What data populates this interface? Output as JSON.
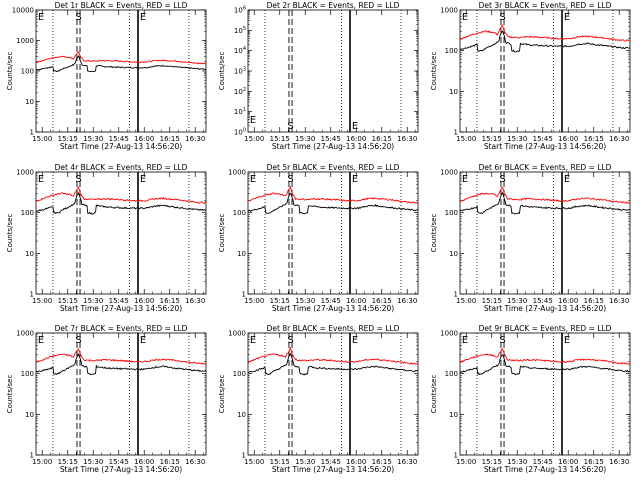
{
  "figure": {
    "x_label": "Start Time (27-Aug-13 14:56:20)",
    "y_label": "Counts/sec",
    "x_ticks": [
      "15:00",
      "15:15",
      "15:30",
      "15:45",
      "16:00",
      "16:15",
      "16:30"
    ],
    "colors": {
      "events": "#000000",
      "lld": "#ff0000"
    }
  },
  "chart_data": [
    {
      "type": "line",
      "title": "Det 1r BLACK = Events, RED = LLD",
      "yscale": "log",
      "ylim": [
        1,
        10000
      ],
      "y_ticks": [
        "1",
        "10",
        "100",
        "1000",
        "10000"
      ],
      "xlim_min": [
        0,
        100
      ],
      "markers": [
        "E",
        "S",
        "E"
      ],
      "series": [
        {
          "name": "Events",
          "profile": "events"
        },
        {
          "name": "LLD",
          "profile": "lld"
        }
      ]
    },
    {
      "type": "line",
      "title": "Det 2r BLACK = Events, RED = LLD",
      "yscale": "log",
      "ylim": [
        1,
        1000000
      ],
      "y_ticks": [
        "10^0",
        "10^1",
        "10^2",
        "10^3",
        "10^4",
        "10^5",
        "10^6"
      ],
      "xlim_min": [
        0,
        100
      ],
      "markers": [
        "E",
        "S",
        "E"
      ],
      "series": []
    },
    {
      "type": "line",
      "title": "Det 3r BLACK = Events, RED = LLD",
      "yscale": "log",
      "ylim": [
        1,
        1000
      ],
      "y_ticks": [
        "1",
        "10",
        "100",
        "1000"
      ],
      "xlim_min": [
        0,
        100
      ],
      "markers": [
        "E",
        "S",
        "E"
      ],
      "series": [
        {
          "name": "Events",
          "profile": "events"
        },
        {
          "name": "LLD",
          "profile": "lld"
        }
      ]
    },
    {
      "type": "line",
      "title": "Det 4r BLACK = Events, RED = LLD",
      "yscale": "log",
      "ylim": [
        1,
        1000
      ],
      "y_ticks": [
        "1",
        "10",
        "100",
        "1000"
      ],
      "xlim_min": [
        0,
        100
      ],
      "markers": [
        "E",
        "S",
        "E"
      ],
      "series": [
        {
          "name": "Events",
          "profile": "events"
        },
        {
          "name": "LLD",
          "profile": "lld"
        }
      ]
    },
    {
      "type": "line",
      "title": "Det 5r BLACK = Events, RED = LLD",
      "yscale": "log",
      "ylim": [
        1,
        1000
      ],
      "y_ticks": [
        "1",
        "10",
        "100",
        "1000"
      ],
      "xlim_min": [
        0,
        100
      ],
      "markers": [
        "E",
        "S",
        "E"
      ],
      "series": [
        {
          "name": "Events",
          "profile": "events"
        },
        {
          "name": "LLD",
          "profile": "lld"
        }
      ]
    },
    {
      "type": "line",
      "title": "Det 6r BLACK = Events, RED = LLD",
      "yscale": "log",
      "ylim": [
        1,
        1000
      ],
      "y_ticks": [
        "1",
        "10",
        "100",
        "1000"
      ],
      "xlim_min": [
        0,
        100
      ],
      "markers": [
        "E",
        "S",
        "E"
      ],
      "series": [
        {
          "name": "Events",
          "profile": "events"
        },
        {
          "name": "LLD",
          "profile": "lld"
        }
      ]
    },
    {
      "type": "line",
      "title": "Det 7r BLACK = Events, RED = LLD",
      "yscale": "log",
      "ylim": [
        1,
        1000
      ],
      "y_ticks": [
        "1",
        "10",
        "100",
        "1000"
      ],
      "xlim_min": [
        0,
        100
      ],
      "markers": [
        "E",
        "S",
        "E"
      ],
      "series": [
        {
          "name": "Events",
          "profile": "events"
        },
        {
          "name": "LLD",
          "profile": "lld"
        }
      ]
    },
    {
      "type": "line",
      "title": "Det 8r BLACK = Events, RED = LLD",
      "yscale": "log",
      "ylim": [
        1,
        1000
      ],
      "y_ticks": [
        "1",
        "10",
        "100",
        "1000"
      ],
      "xlim_min": [
        0,
        100
      ],
      "markers": [
        "E",
        "S",
        "E"
      ],
      "series": [
        {
          "name": "Events",
          "profile": "events"
        },
        {
          "name": "LLD",
          "profile": "lld"
        }
      ]
    },
    {
      "type": "line",
      "title": "Det 9r BLACK = Events, RED = LLD",
      "yscale": "log",
      "ylim": [
        1,
        1000
      ],
      "y_ticks": [
        "1",
        "10",
        "100",
        "1000"
      ],
      "xlim_min": [
        0,
        100
      ],
      "markers": [
        "E",
        "S",
        "E"
      ],
      "series": [
        {
          "name": "Events",
          "profile": "events"
        },
        {
          "name": "LLD",
          "profile": "lld"
        }
      ]
    }
  ],
  "time_markers_min": {
    "dotted": [
      10,
      55,
      90
    ],
    "dashed": 25,
    "solid": 60
  },
  "profiles": {
    "events": [
      [
        0,
        110
      ],
      [
        3,
        115
      ],
      [
        6,
        125
      ],
      [
        9,
        135
      ],
      [
        10,
        140
      ],
      [
        10.5,
        100
      ],
      [
        13,
        98
      ],
      [
        16,
        120
      ],
      [
        18,
        130
      ],
      [
        20,
        145
      ],
      [
        22,
        160
      ],
      [
        23,
        180
      ],
      [
        24,
        260
      ],
      [
        25,
        300
      ],
      [
        26,
        230
      ],
      [
        27,
        160
      ],
      [
        29,
        150
      ],
      [
        30,
        145
      ],
      [
        30.5,
        100
      ],
      [
        33,
        95
      ],
      [
        35,
        100
      ],
      [
        35.5,
        150
      ],
      [
        40,
        140
      ],
      [
        45,
        135
      ],
      [
        50,
        132
      ],
      [
        55,
        130
      ],
      [
        60,
        128
      ],
      [
        65,
        130
      ],
      [
        70,
        145
      ],
      [
        75,
        150
      ],
      [
        80,
        140
      ],
      [
        85,
        132
      ],
      [
        90,
        125
      ],
      [
        95,
        118
      ],
      [
        100,
        115
      ]
    ],
    "lld": [
      [
        0,
        190
      ],
      [
        5,
        230
      ],
      [
        10,
        270
      ],
      [
        15,
        300
      ],
      [
        20,
        280
      ],
      [
        22,
        250
      ],
      [
        24,
        360
      ],
      [
        25,
        420
      ],
      [
        26,
        300
      ],
      [
        28,
        220
      ],
      [
        30,
        215
      ],
      [
        35,
        210
      ],
      [
        40,
        220
      ],
      [
        45,
        215
      ],
      [
        50,
        210
      ],
      [
        55,
        200
      ],
      [
        60,
        195
      ],
      [
        65,
        200
      ],
      [
        70,
        220
      ],
      [
        75,
        225
      ],
      [
        80,
        215
      ],
      [
        85,
        205
      ],
      [
        90,
        190
      ],
      [
        95,
        180
      ],
      [
        100,
        175
      ]
    ]
  }
}
